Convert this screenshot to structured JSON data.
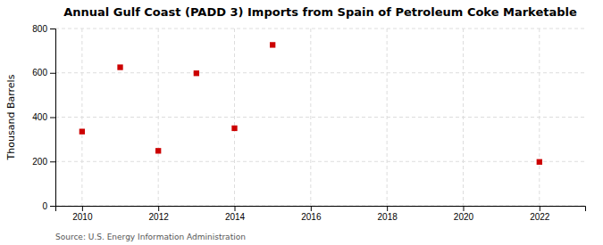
{
  "chart_data": {
    "type": "scatter",
    "title": "Annual Gulf Coast (PADD 3) Imports from Spain of Petroleum Coke Marketable",
    "ylabel": "Thousand Barrels",
    "annotations": [
      "Source: U.S. Energy Information Administration"
    ],
    "x": [
      2010,
      2011,
      2012,
      2013,
      2014,
      2015,
      2022
    ],
    "values": [
      335,
      625,
      248,
      598,
      350,
      726,
      198
    ],
    "color": "#cc0000",
    "marker": "square",
    "xlim": [
      2009.3,
      2023.2
    ],
    "ylim": [
      0,
      800
    ],
    "xticks": [
      2010,
      2012,
      2014,
      2016,
      2018,
      2020,
      2022
    ],
    "yticks": [
      0,
      200,
      400,
      600,
      800
    ],
    "grid": true
  }
}
